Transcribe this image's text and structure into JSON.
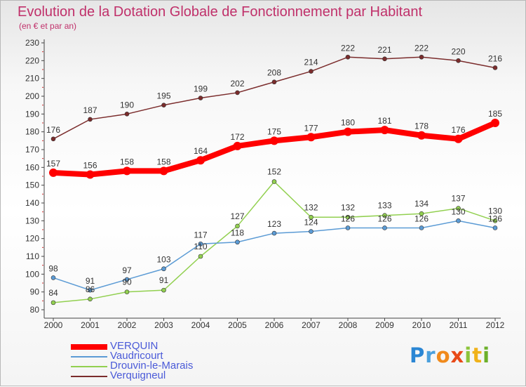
{
  "title": "Evolution de la Dotation Globale de Fonctionnement par Habitant",
  "subtitle": "(en € et par an)",
  "logo": {
    "text": "Proxiti"
  },
  "chart_data": {
    "type": "line",
    "title": "Evolution de la Dotation Globale de Fonctionnement par Habitant",
    "subtitle": "(en € et par an)",
    "xlabel": "",
    "ylabel": "",
    "x": [
      "2000",
      "2001",
      "2002",
      "2003",
      "2004",
      "2005",
      "2006",
      "2007",
      "2008",
      "2009",
      "2010",
      "2011",
      "2012"
    ],
    "y_ticks": [
      80,
      90,
      100,
      110,
      120,
      130,
      140,
      150,
      160,
      170,
      180,
      190,
      200,
      210,
      220,
      230
    ],
    "ylim": [
      80,
      230
    ],
    "grid": false,
    "legend_position": "bottom-left",
    "series": [
      {
        "name": "VERQUIN",
        "color": "#ff0000",
        "emphasis": true,
        "values": [
          157,
          156,
          158,
          158,
          164,
          172,
          175,
          177,
          180,
          181,
          178,
          176,
          185
        ]
      },
      {
        "name": "Vaudricourt",
        "color": "#5b9bd5",
        "values": [
          98,
          91,
          97,
          103,
          117,
          118,
          123,
          124,
          126,
          126,
          126,
          130,
          126
        ]
      },
      {
        "name": "Drouvin-le-Marais",
        "color": "#92d050",
        "values": [
          84,
          86,
          90,
          91,
          110,
          127,
          152,
          132,
          132,
          133,
          134,
          137,
          130
        ]
      },
      {
        "name": "Verquigneul",
        "color": "#7b2c2c",
        "values": [
          176,
          187,
          190,
          195,
          199,
          202,
          208,
          214,
          222,
          221,
          222,
          220,
          216
        ]
      }
    ]
  }
}
